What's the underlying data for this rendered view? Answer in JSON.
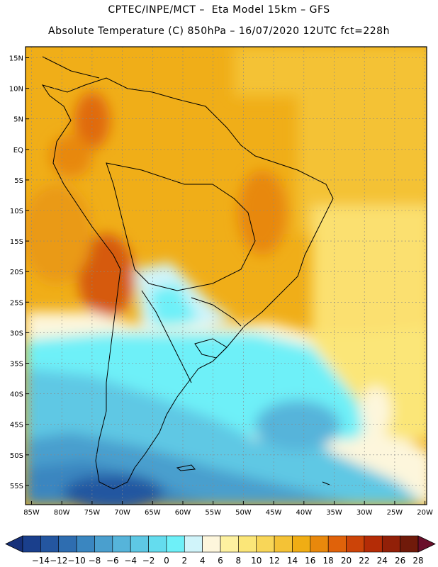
{
  "header": {
    "line1": "CPTEC/INPE/MCT –  Eta Model 15km – GFS",
    "line2": "Absolute Temperature (C) 850hPa – 16/07/2020 12UTC fct=228h"
  },
  "map": {
    "lat_labels": [
      "15N",
      "10N",
      "5N",
      "EQ",
      "5S",
      "10S",
      "15S",
      "20S",
      "25S",
      "30S",
      "35S",
      "40S",
      "45S",
      "50S",
      "55S"
    ],
    "lon_labels": [
      "85W",
      "80W",
      "75W",
      "70W",
      "65W",
      "60W",
      "55W",
      "50W",
      "45W",
      "40W",
      "35W",
      "30W",
      "25W",
      "20W"
    ]
  },
  "colorbar": {
    "labels": [
      "-14",
      "-12",
      "-10",
      "-8",
      "-6",
      "-4",
      "-2",
      "0",
      "2",
      "4",
      "6",
      "8",
      "10",
      "12",
      "14",
      "16",
      "18",
      "20",
      "22",
      "24",
      "26",
      "28"
    ],
    "colors": [
      "#1a3f8c",
      "#2456a0",
      "#2e6db0",
      "#3a86c0",
      "#4a9fce",
      "#56b4da",
      "#5ec8e4",
      "#64dcee",
      "#6ef0f8",
      "#d0f4fa",
      "#fdf6dc",
      "#fdf1a0",
      "#fbe678",
      "#f8d658",
      "#f4c236",
      "#f0ad14",
      "#e8880c",
      "#e0620a",
      "#cc4408",
      "#b42c06",
      "#922008",
      "#701a0a"
    ],
    "under_color": "#16307a",
    "over_color": "#6a0e2a"
  }
}
